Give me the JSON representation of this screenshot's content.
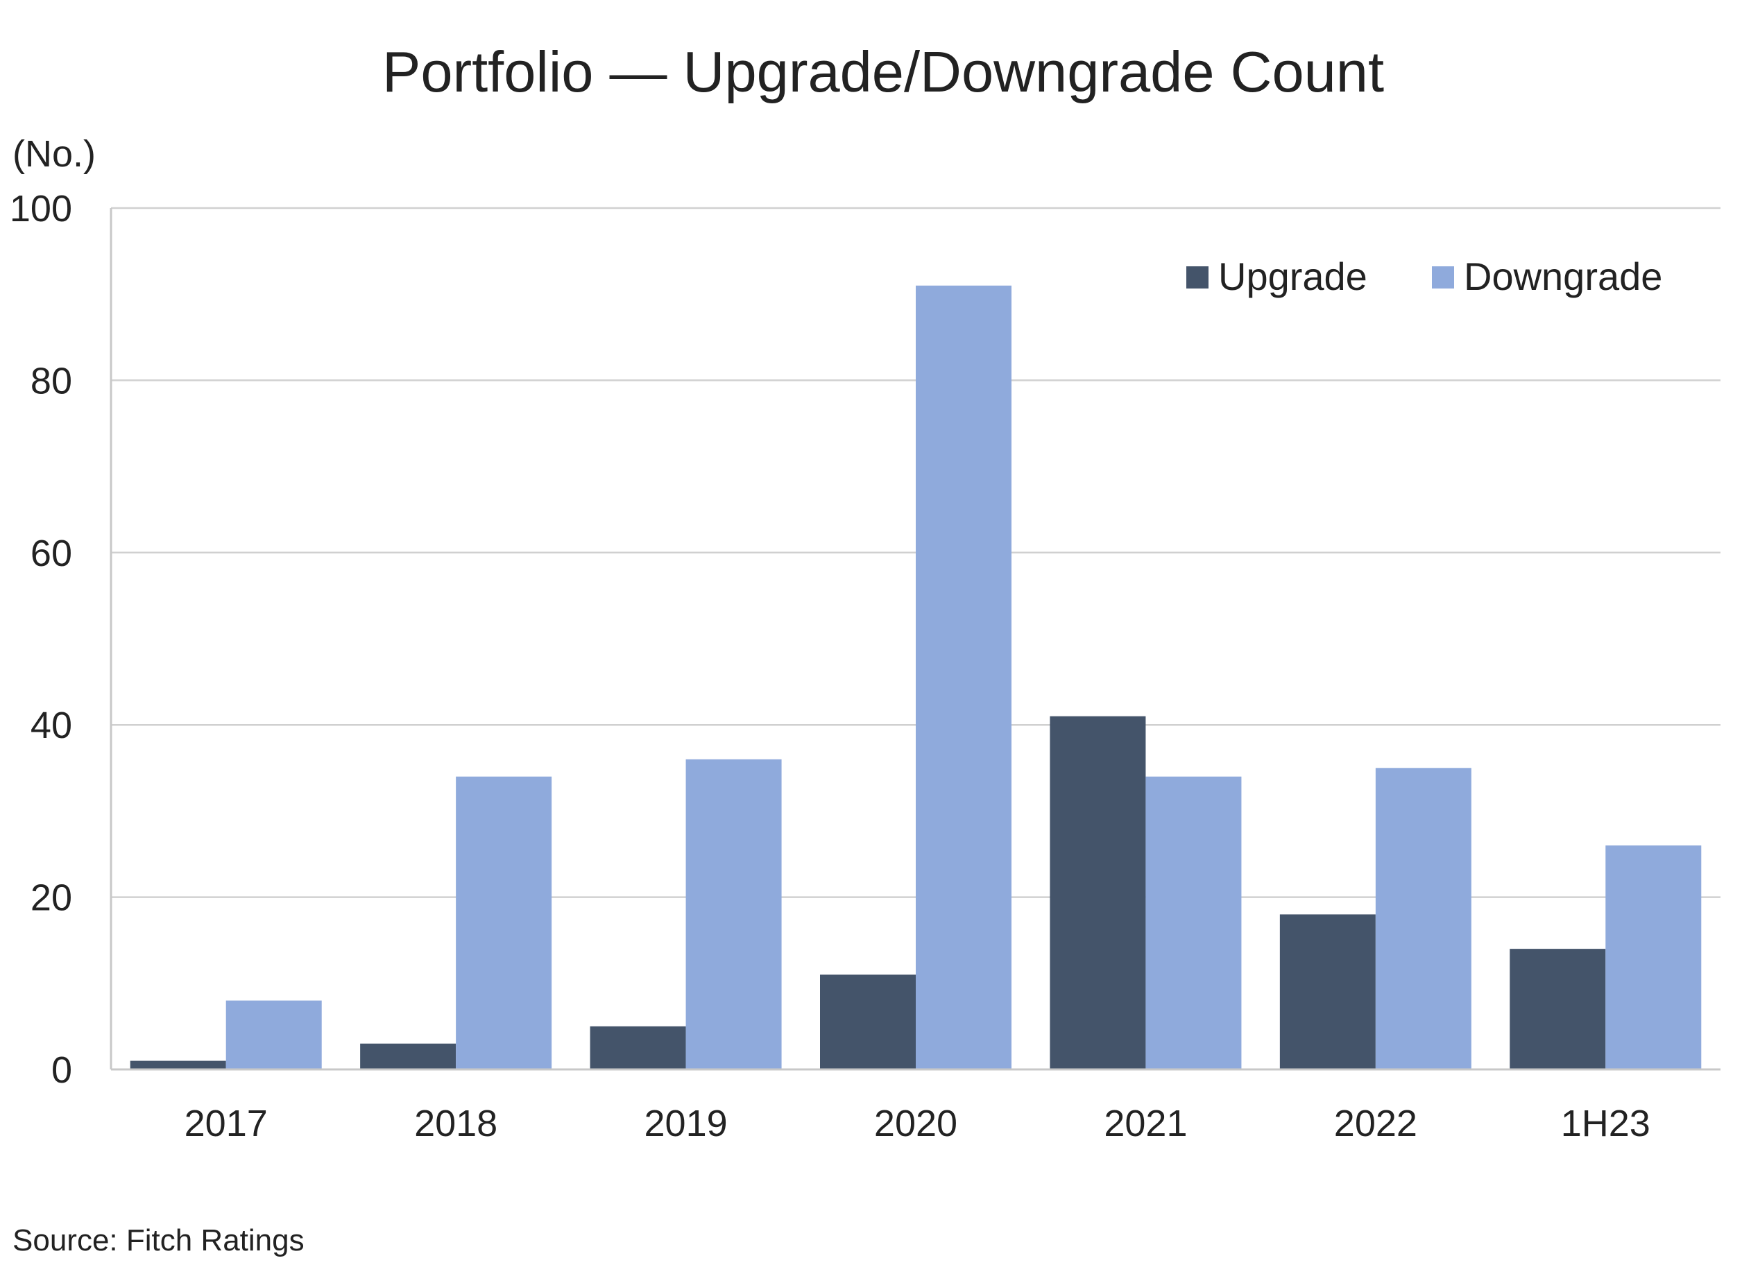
{
  "chart_data": {
    "type": "bar",
    "title": "Portfolio — Upgrade/Downgrade Count",
    "unit_label": "(No.)",
    "categories": [
      "2017",
      "2018",
      "2019",
      "2020",
      "2021",
      "2022",
      "1H23"
    ],
    "series": [
      {
        "name": "Upgrade",
        "color": "#44546A",
        "values": [
          1,
          3,
          5,
          11,
          41,
          18,
          14
        ]
      },
      {
        "name": "Downgrade",
        "color": "#8FAADC",
        "values": [
          8,
          34,
          36,
          91,
          34,
          35,
          26
        ]
      }
    ],
    "ylim": [
      0,
      100
    ],
    "yticks": [
      0,
      20,
      40,
      60,
      80,
      100
    ],
    "grid": true,
    "legend_position": "top-right",
    "source": "Source: Fitch Ratings"
  }
}
